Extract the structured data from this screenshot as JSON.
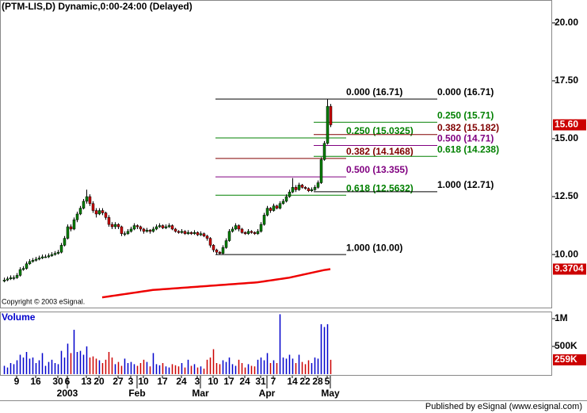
{
  "chart_data": {
    "type": "candlestick",
    "title": "(PTM-LIS,D) Dynamic,0:00-24:00 (Delayed)",
    "copyright": "Copyright © 2003 eSignal.",
    "footer": "Published by eSignal (www.esignal.com)",
    "up_color": "#008000",
    "down_color": "#cc0000",
    "ylim": [
      7.71,
      20.99
    ],
    "yticks": [
      {
        "value": 20,
        "label": "20.00"
      },
      {
        "value": 17.5,
        "label": "17.50"
      },
      {
        "value": 15,
        "label": "15.00"
      },
      {
        "value": 12.5,
        "label": "12.50"
      },
      {
        "value": 10,
        "label": "10.00"
      }
    ],
    "last_label": "15.60",
    "candles": [
      [
        8.85,
        9.0,
        8.8,
        8.9
      ],
      [
        8.9,
        9.05,
        8.85,
        8.95
      ],
      [
        8.95,
        9.1,
        8.9,
        9.0
      ],
      [
        9.0,
        9.1,
        8.9,
        9.0
      ],
      [
        9.0,
        9.2,
        8.95,
        9.1
      ],
      [
        9.1,
        9.45,
        9.05,
        9.35
      ],
      [
        9.35,
        9.5,
        9.3,
        9.4
      ],
      [
        9.4,
        9.7,
        9.35,
        9.6
      ],
      [
        9.6,
        9.8,
        9.55,
        9.7
      ],
      [
        9.7,
        9.85,
        9.65,
        9.75
      ],
      [
        9.75,
        9.9,
        9.7,
        9.8
      ],
      [
        9.8,
        9.95,
        9.75,
        9.85
      ],
      [
        9.85,
        10.0,
        9.8,
        9.9
      ],
      [
        9.9,
        10.0,
        9.85,
        9.9
      ],
      [
        9.9,
        10.05,
        9.85,
        9.95
      ],
      [
        9.95,
        10.1,
        9.9,
        10.0
      ],
      [
        10.0,
        10.15,
        9.95,
        10.05
      ],
      [
        10.05,
        10.2,
        10.0,
        10.1
      ],
      [
        10.1,
        10.5,
        10.05,
        10.4
      ],
      [
        10.4,
        10.8,
        10.35,
        10.7
      ],
      [
        10.7,
        11.3,
        10.65,
        11.2
      ],
      [
        11.2,
        11.3,
        11.0,
        11.1
      ],
      [
        11.1,
        11.6,
        11.05,
        11.5
      ],
      [
        11.5,
        11.85,
        11.4,
        11.75
      ],
      [
        11.75,
        12.1,
        11.7,
        12.0
      ],
      [
        12.0,
        12.4,
        11.95,
        12.3
      ],
      [
        12.3,
        12.8,
        12.2,
        12.5
      ],
      [
        12.5,
        12.6,
        12.1,
        12.2
      ],
      [
        12.2,
        12.3,
        11.8,
        11.9
      ],
      [
        11.9,
        12.0,
        11.6,
        11.75
      ],
      [
        11.75,
        12.0,
        11.7,
        11.9
      ],
      [
        11.9,
        12.0,
        11.7,
        11.8
      ],
      [
        11.8,
        11.85,
        11.5,
        11.6
      ],
      [
        11.6,
        11.7,
        11.2,
        11.3
      ],
      [
        11.3,
        11.4,
        11.1,
        11.2
      ],
      [
        11.2,
        11.4,
        11.1,
        11.3
      ],
      [
        11.3,
        11.35,
        11.1,
        11.2
      ],
      [
        11.2,
        11.25,
        10.8,
        10.9
      ],
      [
        10.9,
        11.0,
        10.8,
        10.9
      ],
      [
        10.9,
        11.1,
        10.85,
        11.0
      ],
      [
        11.0,
        11.2,
        10.95,
        11.1
      ],
      [
        11.1,
        11.35,
        11.05,
        11.25
      ],
      [
        11.25,
        11.3,
        11.1,
        11.2
      ],
      [
        11.2,
        11.25,
        11.0,
        11.1
      ],
      [
        11.1,
        11.15,
        10.9,
        11.0
      ],
      [
        11.0,
        11.15,
        10.95,
        11.05
      ],
      [
        11.05,
        11.1,
        10.9,
        11.0
      ],
      [
        11.0,
        11.2,
        10.95,
        11.1
      ],
      [
        11.1,
        11.3,
        11.05,
        11.2
      ],
      [
        11.2,
        11.35,
        11.15,
        11.25
      ],
      [
        11.25,
        11.3,
        11.1,
        11.15
      ],
      [
        11.15,
        11.3,
        11.1,
        11.2
      ],
      [
        11.2,
        11.35,
        11.15,
        11.25
      ],
      [
        11.25,
        11.3,
        11.05,
        11.1
      ],
      [
        11.1,
        11.15,
        10.95,
        11.0
      ],
      [
        11.0,
        11.05,
        10.9,
        10.95
      ],
      [
        10.95,
        11.1,
        10.9,
        11.0
      ],
      [
        11.0,
        11.05,
        10.85,
        10.9
      ],
      [
        10.9,
        11.05,
        10.85,
        10.95
      ],
      [
        10.95,
        11.0,
        10.85,
        10.9
      ],
      [
        10.9,
        11.05,
        10.85,
        10.95
      ],
      [
        10.95,
        11.0,
        10.8,
        10.85
      ],
      [
        10.85,
        11.0,
        10.8,
        10.9
      ],
      [
        10.9,
        10.95,
        10.75,
        10.8
      ],
      [
        10.8,
        10.85,
        10.6,
        10.7
      ],
      [
        10.7,
        10.75,
        10.3,
        10.4
      ],
      [
        10.4,
        10.45,
        10.1,
        10.2
      ],
      [
        10.2,
        10.25,
        10.0,
        10.1
      ],
      [
        10.1,
        10.15,
        10.0,
        10.05
      ],
      [
        10.05,
        10.4,
        10.0,
        10.3
      ],
      [
        10.3,
        10.7,
        10.25,
        10.6
      ],
      [
        10.6,
        11.1,
        10.55,
        11.0
      ],
      [
        11.0,
        11.2,
        10.95,
        11.1
      ],
      [
        11.1,
        11.35,
        11.05,
        11.25
      ],
      [
        11.25,
        11.3,
        11.0,
        11.1
      ],
      [
        11.1,
        11.15,
        10.9,
        10.95
      ],
      [
        10.95,
        11.0,
        10.85,
        10.9
      ],
      [
        10.9,
        11.1,
        10.85,
        11.0
      ],
      [
        11.0,
        11.05,
        10.9,
        10.95
      ],
      [
        10.95,
        11.0,
        10.85,
        10.9
      ],
      [
        10.9,
        11.1,
        10.85,
        11.0
      ],
      [
        11.0,
        11.4,
        10.95,
        11.3
      ],
      [
        11.3,
        11.8,
        11.25,
        11.7
      ],
      [
        11.7,
        12.1,
        11.65,
        12.0
      ],
      [
        12.0,
        12.05,
        11.8,
        11.9
      ],
      [
        11.9,
        12.2,
        11.85,
        12.1
      ],
      [
        12.1,
        12.15,
        11.95,
        12.0
      ],
      [
        12.0,
        12.3,
        11.95,
        12.2
      ],
      [
        12.2,
        12.4,
        12.15,
        12.3
      ],
      [
        12.3,
        12.6,
        12.25,
        12.5
      ],
      [
        12.5,
        12.8,
        12.45,
        12.7
      ],
      [
        12.7,
        13.3,
        12.65,
        12.9
      ],
      [
        12.9,
        13.0,
        12.7,
        12.8
      ],
      [
        12.8,
        13.1,
        12.75,
        13.0
      ],
      [
        13.0,
        13.05,
        12.85,
        12.9
      ],
      [
        12.9,
        12.95,
        12.8,
        12.85
      ],
      [
        12.85,
        12.9,
        12.7,
        12.75
      ],
      [
        12.75,
        12.9,
        12.7,
        12.8
      ],
      [
        12.8,
        13.0,
        12.75,
        12.9
      ],
      [
        12.9,
        13.2,
        12.85,
        13.1
      ],
      [
        13.1,
        14.2,
        13.05,
        14.1
      ],
      [
        14.1,
        14.9,
        14.05,
        14.8
      ],
      [
        14.8,
        16.71,
        14.75,
        16.4
      ],
      [
        16.4,
        16.5,
        15.5,
        15.6
      ]
    ],
    "ma": {
      "color": "#ee0000",
      "values": [
        null,
        null,
        null,
        null,
        null,
        null,
        null,
        null,
        null,
        null,
        null,
        null,
        null,
        null,
        null,
        null,
        null,
        null,
        null,
        null,
        null,
        null,
        null,
        null,
        null,
        null,
        null,
        null,
        null,
        null,
        null,
        8.15,
        8.17,
        8.19,
        8.21,
        8.23,
        8.25,
        8.27,
        8.29,
        8.31,
        8.33,
        8.35,
        8.37,
        8.39,
        8.41,
        8.43,
        8.45,
        8.47,
        8.48,
        8.49,
        8.5,
        8.51,
        8.52,
        8.53,
        8.54,
        8.55,
        8.56,
        8.57,
        8.58,
        8.59,
        8.6,
        8.61,
        8.62,
        8.63,
        8.64,
        8.65,
        8.66,
        8.67,
        8.68,
        8.69,
        8.7,
        8.71,
        8.72,
        8.73,
        8.74,
        8.75,
        8.76,
        8.77,
        8.78,
        8.79,
        8.8,
        8.82,
        8.84,
        8.86,
        8.88,
        8.9,
        8.92,
        8.94,
        8.96,
        8.98,
        9.0,
        9.03,
        9.06,
        9.09,
        9.12,
        9.15,
        9.18,
        9.21,
        9.24,
        9.27,
        9.3,
        9.33,
        9.35,
        9.3704
      ]
    },
    "fib_sets": [
      {
        "levels": [
          {
            "label": "0.000 (16.71)",
            "value": 16.71,
            "color": "#000000"
          },
          {
            "label": "0.250 (15.0325)",
            "value": 15.0325,
            "color": "#008000"
          },
          {
            "label": "0.382 (14.1468)",
            "value": 14.1468,
            "color": "#800000"
          },
          {
            "label": "0.500 (13.355)",
            "value": 13.355,
            "color": "#800080"
          },
          {
            "label": "0.618 (12.5632)",
            "value": 12.5632,
            "color": "#008000"
          },
          {
            "label": "1.000 (10.00)",
            "value": 10.0,
            "color": "#000000"
          }
        ]
      },
      {
        "levels": [
          {
            "label": "0.000 (16.71)",
            "value": 16.71,
            "color": "#000000"
          },
          {
            "label": "0.250 (15.71)",
            "value": 15.71,
            "color": "#008000"
          },
          {
            "label": "0.382 (15.182)",
            "value": 15.182,
            "color": "#800000"
          },
          {
            "label": "0.500 (14.71)",
            "value": 14.71,
            "color": "#800080"
          },
          {
            "label": "0.618 (14.238)",
            "value": 14.238,
            "color": "#008000"
          },
          {
            "label": "1.000 (12.71)",
            "value": 12.71,
            "color": "#000000"
          }
        ]
      }
    ],
    "volume": {
      "title": "Volume",
      "up_color": "#0000cc",
      "down_color": "#cc0000",
      "ylim": [
        0,
        1129
      ],
      "yticks": [
        {
          "value": 1000,
          "label": "1M"
        },
        {
          "value": 500,
          "label": "500K"
        }
      ],
      "last_label": "259K",
      "values": [
        150,
        120,
        200,
        180,
        250,
        350,
        300,
        400,
        280,
        300,
        200,
        250,
        380,
        150,
        220,
        260,
        200,
        180,
        420,
        300,
        550,
        380,
        800,
        400,
        420,
        350,
        500,
        300,
        320,
        280,
        250,
        200,
        260,
        400,
        300,
        180,
        220,
        150,
        280,
        200,
        220,
        180,
        150,
        200,
        260,
        220,
        140,
        380,
        180,
        160,
        200,
        140,
        120,
        180,
        160,
        140,
        200,
        120,
        260,
        150,
        180,
        120,
        140,
        100,
        260,
        300,
        450,
        200,
        180,
        250,
        220,
        300,
        180,
        150,
        260,
        200,
        120,
        180,
        150,
        140,
        260,
        300,
        250,
        380,
        200,
        250,
        200,
        1080,
        300,
        280,
        350,
        280,
        200,
        350,
        220,
        180,
        250,
        200,
        300,
        280,
        900,
        850,
        900,
        259
      ]
    },
    "xticks": [
      {
        "value": 4,
        "label": "9"
      },
      {
        "value": 10,
        "label": "16"
      },
      {
        "value": 17,
        "label": "30"
      },
      {
        "value": 20,
        "label": "6"
      },
      {
        "value": 26,
        "label": "13"
      },
      {
        "value": 30,
        "label": "20"
      },
      {
        "value": 36,
        "label": "27"
      },
      {
        "value": 40,
        "label": "3"
      },
      {
        "value": 44,
        "label": "10"
      },
      {
        "value": 50,
        "label": "17"
      },
      {
        "value": 56,
        "label": "24"
      },
      {
        "value": 61,
        "label": "3"
      },
      {
        "value": 66,
        "label": "10"
      },
      {
        "value": 71,
        "label": "17"
      },
      {
        "value": 76,
        "label": "24"
      },
      {
        "value": 81,
        "label": "31"
      },
      {
        "value": 85,
        "label": "7"
      },
      {
        "value": 91,
        "label": "14"
      },
      {
        "value": 95,
        "label": "22"
      },
      {
        "value": 99,
        "label": "28"
      },
      {
        "value": 102,
        "label": "5"
      }
    ],
    "month_ticks": [
      {
        "value": 20,
        "label": "2003"
      },
      {
        "value": 42,
        "label": "Feb"
      },
      {
        "value": 62,
        "label": "Mar"
      },
      {
        "value": 83,
        "label": "Apr"
      },
      {
        "value": 103,
        "label": "May"
      }
    ]
  }
}
